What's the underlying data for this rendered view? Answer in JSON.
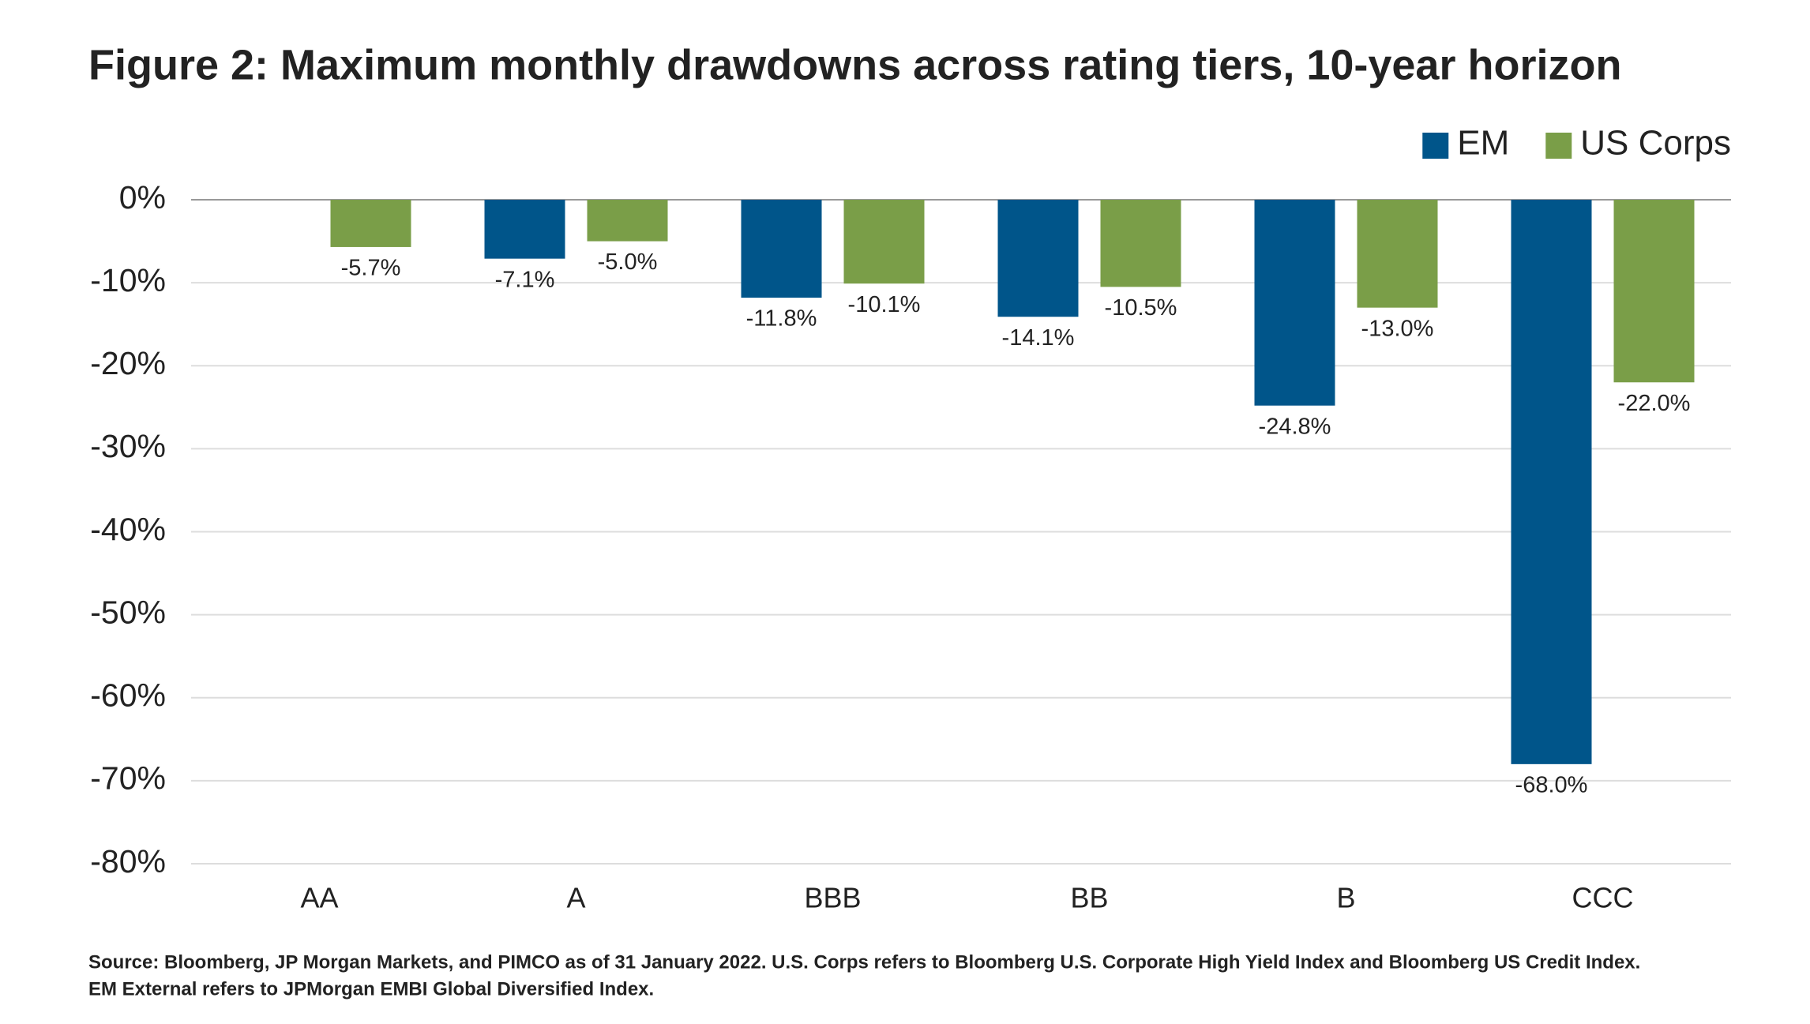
{
  "chart_data": {
    "type": "bar",
    "title": "Figure 2: Maximum monthly drawdowns across rating tiers, 10-year horizon",
    "categories": [
      "AA",
      "A",
      "BBB",
      "BB",
      "B",
      "CCC"
    ],
    "series": [
      {
        "name": "EM",
        "color": "#00558a",
        "values": [
          null,
          -7.1,
          -11.8,
          -14.1,
          -24.8,
          -68.0
        ],
        "value_labels": [
          null,
          "-7.1%",
          "-11.8%",
          "-14.1%",
          "-24.8%",
          "-68.0%"
        ]
      },
      {
        "name": "US Corps",
        "color": "#7a9e48",
        "values": [
          -5.7,
          -5.0,
          -10.1,
          -10.5,
          -13.0,
          -22.0
        ],
        "value_labels": [
          "-5.7%",
          "-5.0%",
          "-10.1%",
          "-10.5%",
          "-13.0%",
          "-22.0%"
        ]
      }
    ],
    "ylim": [
      -80,
      0
    ],
    "yticks": [
      {
        "value": 0,
        "label": "0%"
      },
      {
        "value": -10,
        "label": "-10%"
      },
      {
        "value": -20,
        "label": "-20%"
      },
      {
        "value": -30,
        "label": "-30%"
      },
      {
        "value": -40,
        "label": "-40%"
      },
      {
        "value": -50,
        "label": "-50%"
      },
      {
        "value": -60,
        "label": "-60%"
      },
      {
        "value": -70,
        "label": "-70%"
      },
      {
        "value": -80,
        "label": "-80%"
      }
    ],
    "grid": true,
    "legend": "top-right",
    "footnote": [
      "Source: Bloomberg, JP Morgan Markets, and PIMCO as of 31 January 2022. U.S. Corps refers to Bloomberg U.S. Corporate High Yield Index and Bloomberg US Credit Index.",
      "EM External refers to JPMorgan EMBI Global Diversified Index."
    ]
  }
}
